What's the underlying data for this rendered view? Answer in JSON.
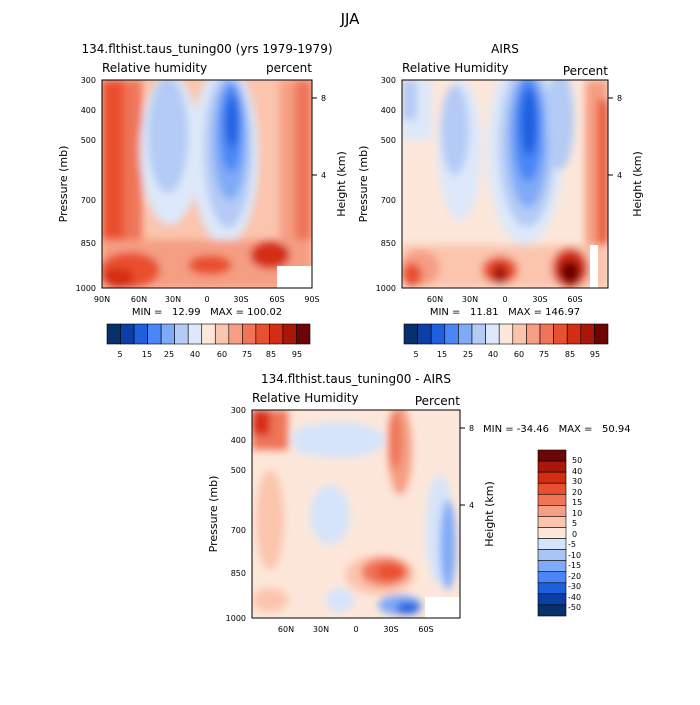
{
  "figure": {
    "title": "JJA"
  },
  "palettes": {
    "rh": [
      "#08306b",
      "#0b3fa6",
      "#1e5fe0",
      "#4a86f5",
      "#7faaf7",
      "#b3cbf5",
      "#dde8fa",
      "#fde7da",
      "#fbc4ad",
      "#f59e83",
      "#ef7458",
      "#e9502f",
      "#d42d12",
      "#a8170a",
      "#6e0505"
    ],
    "diff": [
      "#08306b",
      "#0b3fa6",
      "#1e5fe0",
      "#4a86f5",
      "#7faaf7",
      "#a9c5f5",
      "#d5e4fa",
      "#fde7da",
      "#fbc4ad",
      "#f59e83",
      "#ef7458",
      "#e9502f",
      "#d42d12",
      "#a8170a",
      "#6e0505"
    ]
  },
  "chart_data": [
    {
      "type": "heatmap",
      "title": "134.flthist.taus_tuning00 (yrs 1979-1979)",
      "left_label": "Relative humidity",
      "right_label": "percent",
      "ylabel": "Pressure (mb)",
      "y2label": "Height (km)",
      "yticks": [
        "300",
        "400",
        "500",
        "700",
        "850",
        "1000"
      ],
      "y2ticks": [
        "8",
        "4"
      ],
      "xticks": [
        "90N",
        "60N",
        "30N",
        "0",
        "30S",
        "60S",
        "90S"
      ],
      "stats": "MIN =   12.99   MAX = 100.02",
      "colorbar_labels": [
        "5",
        "15",
        "25",
        "40",
        "60",
        "75",
        "85",
        "95"
      ]
    },
    {
      "type": "heatmap",
      "title": "AIRS",
      "left_label": "Relative Humidity",
      "right_label": "Percent",
      "ylabel": "Pressure (mb)",
      "y2label": "Height (km)",
      "yticks": [
        "300",
        "400",
        "500",
        "700",
        "850",
        "1000"
      ],
      "y2ticks": [
        "8",
        "4"
      ],
      "xticks": [
        "60N",
        "30N",
        "0",
        "30S",
        "60S"
      ],
      "stats": "MIN =   11.81   MAX = 146.97",
      "colorbar_labels": [
        "5",
        "15",
        "25",
        "40",
        "60",
        "75",
        "85",
        "95"
      ]
    },
    {
      "type": "heatmap",
      "title": "134.flthist.taus_tuning00 - AIRS",
      "left_label": "Relative Humidity",
      "right_label": "Percent",
      "ylabel": "Pressure (mb)",
      "y2label": "Height (km)",
      "yticks": [
        "300",
        "400",
        "500",
        "700",
        "850",
        "1000"
      ],
      "y2ticks": [
        "8",
        "4"
      ],
      "xticks": [
        "60N",
        "30N",
        "0",
        "30S",
        "60S"
      ],
      "stats": "MIN = -34.46   MAX =   50.94",
      "colorbar_labels": [
        "50",
        "40",
        "30",
        "20",
        "15",
        "10",
        "5",
        "0",
        "-5",
        "-10",
        "-15",
        "-20",
        "-30",
        "-40",
        "-50"
      ]
    }
  ]
}
